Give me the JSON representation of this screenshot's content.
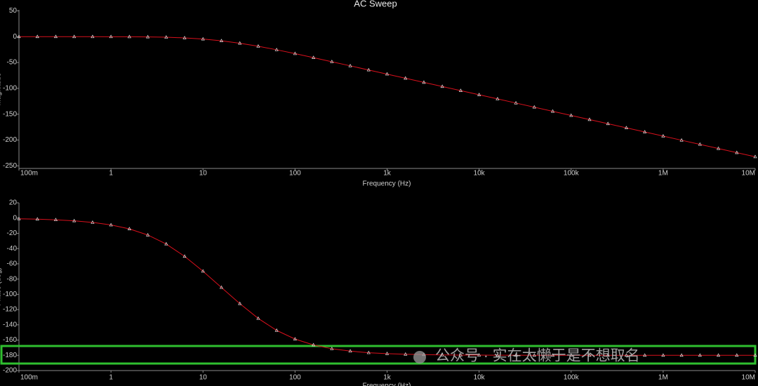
{
  "chart_data": [
    {
      "type": "line",
      "title": "AC Sweep",
      "xlabel": "Frequency (Hz)",
      "ylabel": "Magnitude",
      "xscale": "log",
      "xlim": [
        0.1,
        10000000
      ],
      "ylim": [
        -255,
        52
      ],
      "xticks": [
        {
          "value": 0.1,
          "label": "100m"
        },
        1,
        10,
        100,
        {
          "value": 1000,
          "label": "1k"
        },
        {
          "value": 10000,
          "label": "10k"
        },
        {
          "value": 100000,
          "label": "100k"
        },
        {
          "value": 1000000,
          "label": "1M"
        },
        {
          "value": 10000000,
          "label": "10M"
        }
      ],
      "yticks": [
        50,
        0,
        -50,
        -100,
        -150,
        -200,
        -250
      ],
      "x": [
        0.1,
        0.1585,
        0.2512,
        0.3981,
        0.631,
        1,
        1.585,
        2.512,
        3.981,
        6.31,
        10,
        15.85,
        25.12,
        39.81,
        63.1,
        100,
        158.5,
        251.2,
        398.1,
        631,
        1000,
        1585,
        2512,
        3981,
        6310,
        10000,
        15850,
        25120,
        39810,
        63100,
        100000,
        158500,
        251200,
        398100,
        631000,
        1000000,
        1585000,
        2512000,
        3981000,
        6310000,
        10000000
      ],
      "series": [
        {
          "color": "#d8101c",
          "values": [
            0,
            -0.002,
            -0.005,
            -0.012,
            -0.029,
            -0.072,
            -0.18,
            -0.44,
            -1.04,
            -2.29,
            -4.55,
            -7.99,
            -12.67,
            -18.52,
            -25.35,
            -32.79,
            -40.57,
            -48.46,
            -56.42,
            -64.41,
            -72.41,
            -80.41,
            -88.41,
            -96.41,
            -104.41,
            -112.41,
            -120.41,
            -128.41,
            -136.41,
            -144.41,
            -152.41,
            -160.41,
            -168.41,
            -176.41,
            -184.41,
            -192.41,
            -200.41,
            -208.41,
            -216.41,
            -224.41,
            -232.41
          ]
        }
      ]
    },
    {
      "type": "line",
      "xlabel": "Frequency (Hz)",
      "ylabel": "Phase (deg)",
      "xscale": "log",
      "xlim": [
        0.1,
        10000000
      ],
      "ylim": [
        -200,
        20
      ],
      "xticks": [
        {
          "value": 0.1,
          "label": "100m"
        },
        1,
        10,
        100,
        {
          "value": 1000,
          "label": "1k"
        },
        {
          "value": 10000,
          "label": "10k"
        },
        {
          "value": 100000,
          "label": "100k"
        },
        {
          "value": 1000000,
          "label": "1M"
        },
        {
          "value": 10000000,
          "label": "10M"
        }
      ],
      "yticks": [
        20,
        0,
        -20,
        -40,
        -60,
        -80,
        -100,
        -120,
        -140,
        -160,
        -180,
        -200
      ],
      "annotation": "公众号 · 实在太懒于是不想取名",
      "x": [
        0.1,
        0.1585,
        0.2512,
        0.3981,
        0.631,
        1,
        1.585,
        2.512,
        3.981,
        6.31,
        10,
        15.85,
        25.12,
        39.81,
        63.1,
        100,
        158.5,
        251.2,
        398.1,
        631,
        1000,
        1585,
        2512,
        3981,
        6310,
        10000,
        15850,
        25120,
        39810,
        63100,
        100000,
        158500,
        251200,
        398100,
        631000,
        1000000,
        1585000,
        2512000,
        3981000,
        6310000,
        10000000
      ],
      "series": [
        {
          "color": "#d8101c",
          "values": [
            -0.91,
            -1.43,
            -2.28,
            -3.61,
            -5.71,
            -9.04,
            -14.2,
            -22.2,
            -34.0,
            -50.2,
            -69.7,
            -91.0,
            -112.2,
            -131.6,
            -147.3,
            -158.7,
            -166.4,
            -171.4,
            -174.5,
            -176.6,
            -177.8,
            -178.6,
            -179.1,
            -179.5,
            -179.7,
            -179.8,
            -179.9,
            -179.9,
            -180,
            -180,
            -180,
            -180,
            -180,
            -180,
            -180,
            -180,
            -180,
            -180,
            -180,
            -180,
            -180
          ]
        }
      ]
    }
  ]
}
